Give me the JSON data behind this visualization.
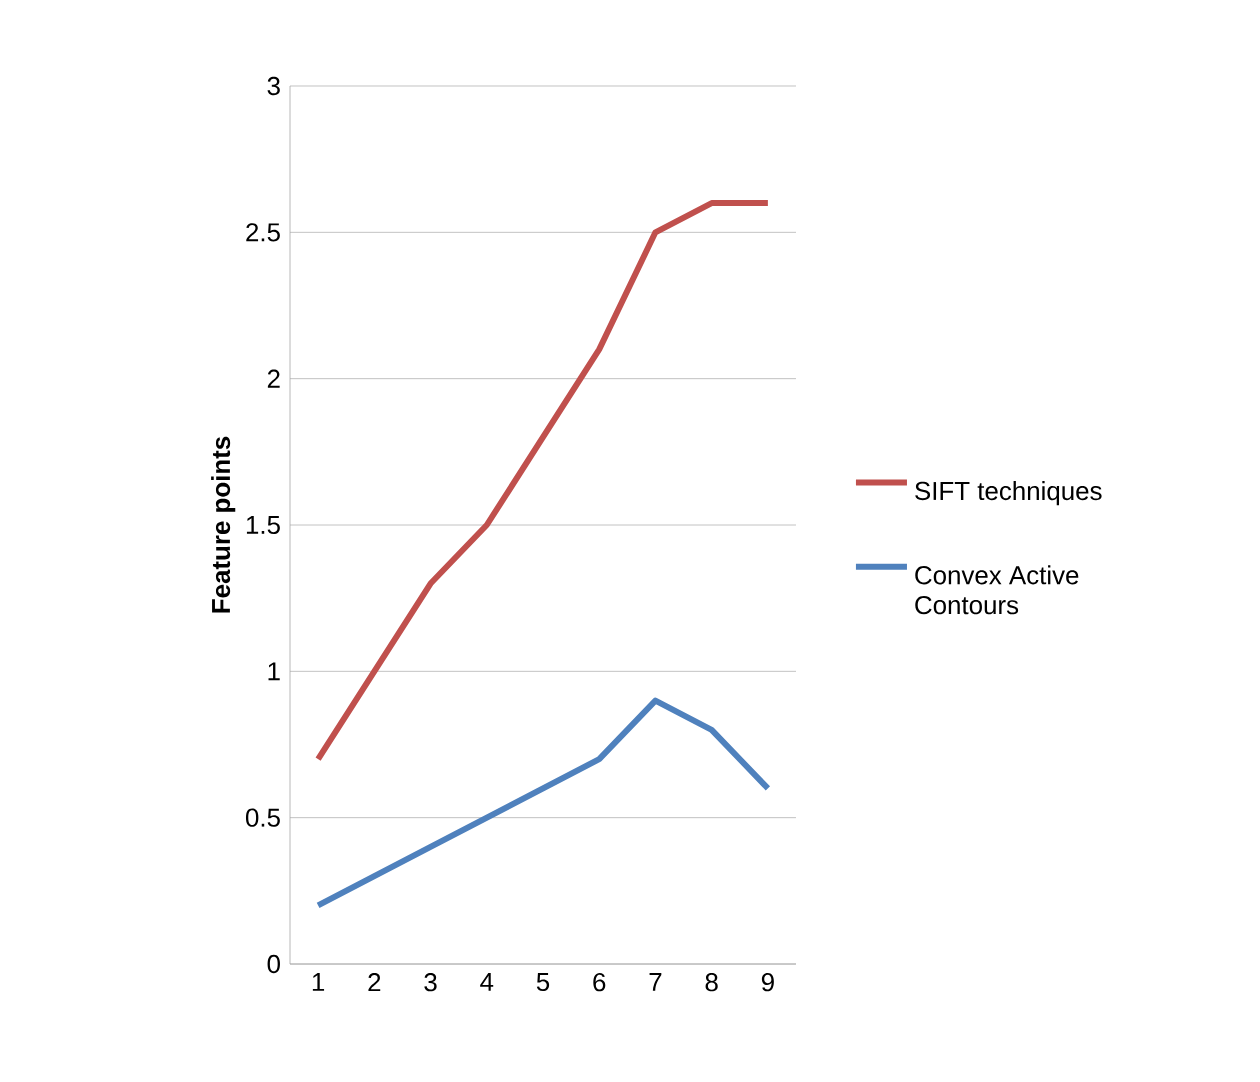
{
  "chart_data": {
    "type": "line",
    "ylabel": "Feature points",
    "categories": [
      "1",
      "2",
      "3",
      "4",
      "5",
      "6",
      "7",
      "8",
      "9"
    ],
    "series": [
      {
        "name": "SIFT techniques",
        "color": "#c0504d",
        "values": [
          0.7,
          1.0,
          1.3,
          1.5,
          1.8,
          2.1,
          2.5,
          2.6,
          2.6
        ]
      },
      {
        "name": "Convex Active Contours",
        "color": "#4f81bd",
        "values": [
          0.2,
          0.3,
          0.4,
          0.5,
          0.6,
          0.7,
          0.9,
          0.8,
          0.6
        ]
      }
    ],
    "ylim": [
      0,
      3
    ],
    "yticks": [
      0,
      0.5,
      1,
      1.5,
      2,
      2.5,
      3
    ],
    "grid": "y",
    "legend": "right",
    "marker": "none",
    "line_style": "solid"
  }
}
